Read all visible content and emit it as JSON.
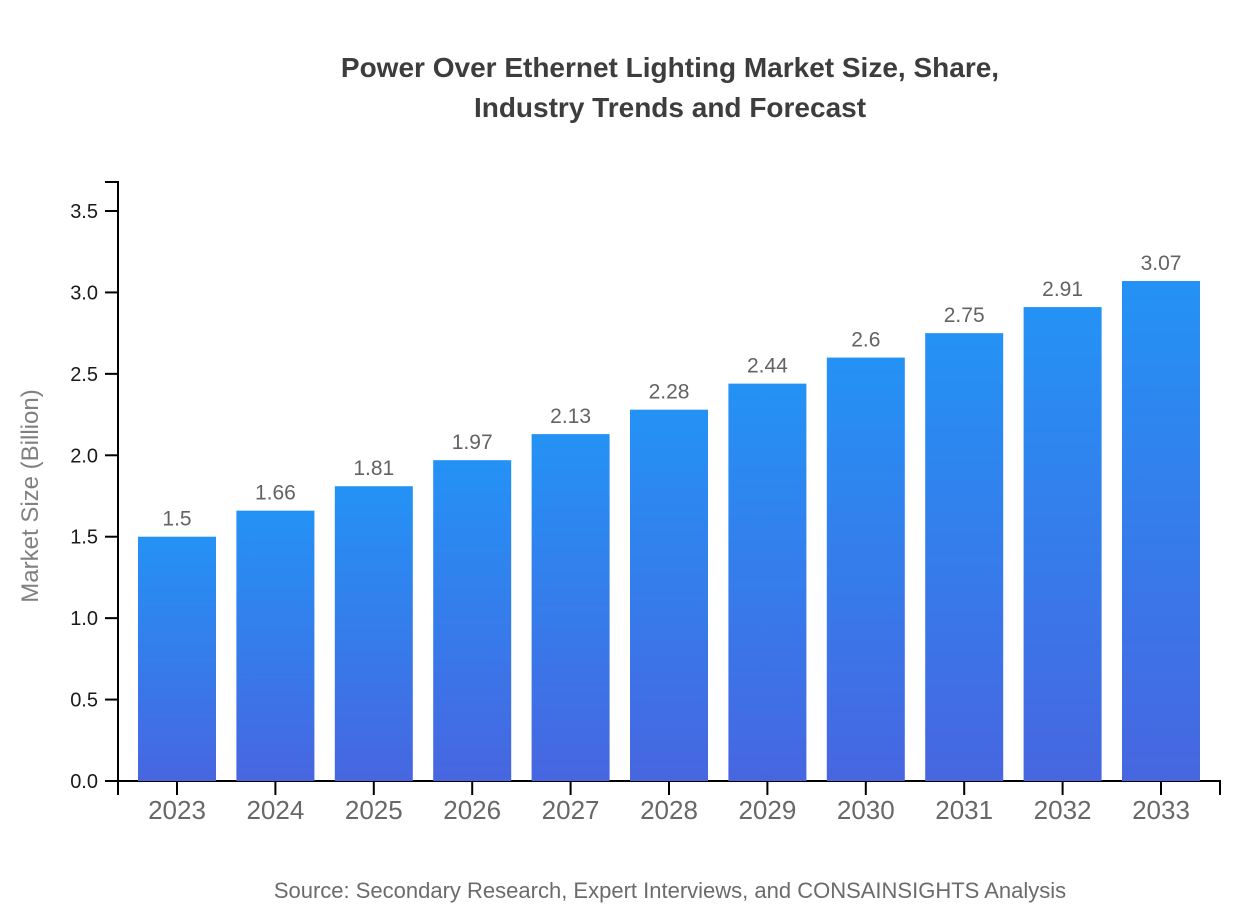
{
  "title": "Power Over Ethernet Lighting Market Size, Share,\nIndustry Trends and Forecast",
  "source": "Source: Secondary Research, Expert Interviews, and CONSAINSIGHTS Analysis",
  "chart_data": {
    "type": "bar",
    "title": "Power Over Ethernet Lighting Market Size, Share, Industry Trends and Forecast",
    "categories": [
      "2023",
      "2024",
      "2025",
      "2026",
      "2027",
      "2028",
      "2029",
      "2030",
      "2031",
      "2032",
      "2033"
    ],
    "values": [
      1.5,
      1.66,
      1.81,
      1.97,
      2.13,
      2.28,
      2.44,
      2.6,
      2.75,
      2.91,
      3.07
    ],
    "value_labels": [
      "1.5",
      "1.66",
      "1.81",
      "1.97",
      "2.13",
      "2.28",
      "2.44",
      "2.6",
      "2.75",
      "2.91",
      "3.07"
    ],
    "xlabel": "",
    "ylabel": "Market Size (Billion)",
    "ylim": [
      0,
      3.5
    ],
    "yticks": [
      0.0,
      0.5,
      1.0,
      1.5,
      2.0,
      2.5,
      3.0,
      3.5
    ],
    "grid": false,
    "legend": false,
    "colors": {
      "bar_gradient_top": "#2492F5",
      "bar_gradient_bottom": "#4766E0",
      "axis_line": "#000000",
      "y_tick_label": "#1a1a1a",
      "x_tick_label": "#686868",
      "value_label": "#636363",
      "y_axis_label": "#808080",
      "title_color": "#3d3d3d",
      "source_color": "#6b6b6b"
    }
  }
}
